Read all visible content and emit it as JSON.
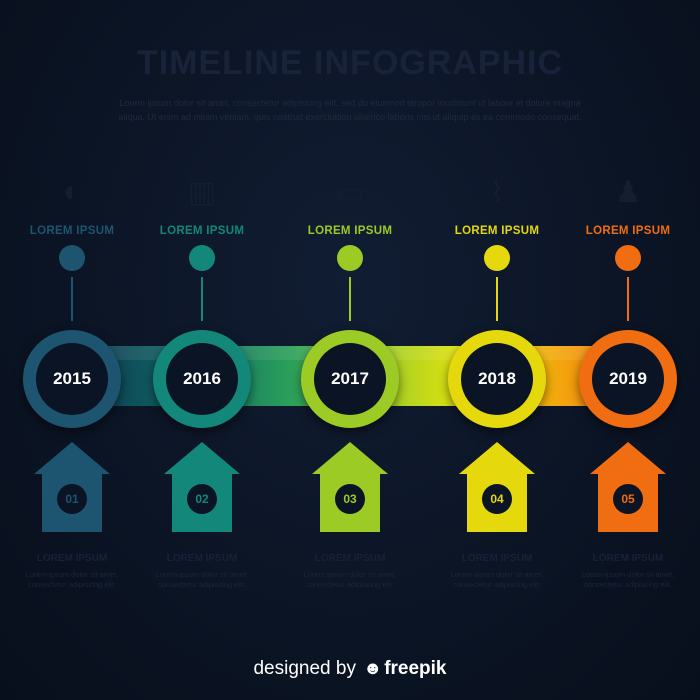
{
  "header": {
    "title": "TIMELINE INFOGRAPHIC",
    "description": "Lorem ipsum dolor sit amet, consectetur adipiscing elit, sed do eiusmod tempor incididunt ut labore et dolore magna aliqua. Ut enim ad minim veniam, quis nostrud exercitation ullamco laboris nisi ut aliquip ex ea commodo consequat."
  },
  "steps": [
    {
      "label": "LOREM IPSUM",
      "year": "2015",
      "number": "01",
      "icon": "globe-icon",
      "glyph": "◐",
      "color": "#1d5570",
      "text_title": "LOREM IPSUM",
      "text_body": "Lorem ipsum dolor sit amet, consectetur adipiscing elit."
    },
    {
      "label": "LOREM IPSUM",
      "year": "2016",
      "number": "02",
      "icon": "chart-icon",
      "glyph": "▥",
      "color": "#12877a",
      "text_title": "LOREM IPSUM",
      "text_body": "Lorem ipsum dolor sit amet, consectetur adipiscing elit."
    },
    {
      "label": "LOREM IPSUM",
      "year": "2017",
      "number": "03",
      "icon": "laptop-icon",
      "glyph": "▭",
      "color": "#9ccb26",
      "text_title": "LOREM IPSUM",
      "text_body": "Lorem ipsum dolor sit amet, consectetur adipiscing elit."
    },
    {
      "label": "LOREM IPSUM",
      "year": "2018",
      "number": "04",
      "icon": "trend-icon",
      "glyph": "⌇",
      "color": "#e5d90d",
      "text_title": "LOREM IPSUM",
      "text_body": "Lorem ipsum dolor sit amet, consectetur adipiscing elit."
    },
    {
      "label": "LOREM IPSUM",
      "year": "2019",
      "number": "05",
      "icon": "person-icon",
      "glyph": "♟",
      "color": "#f06d12",
      "text_title": "LOREM IPSUM",
      "text_body": "Lorem ipsum dolor sit amet, consectetur adipiscing elit."
    }
  ],
  "footer": {
    "prefix": "designed by",
    "brand": "freepik",
    "mascot_icon": "freepik-logo-icon"
  }
}
